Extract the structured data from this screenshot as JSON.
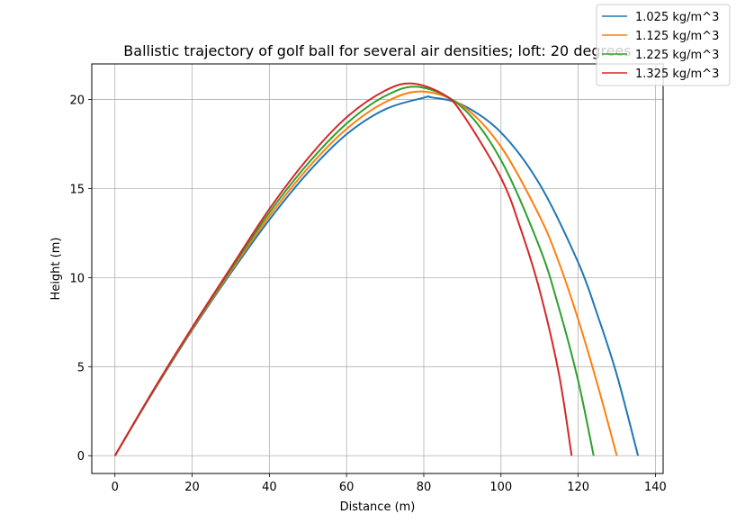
{
  "chart_data": {
    "type": "line",
    "title": "Ballistic trajectory of golf ball for several air densities; loft: 20 degrees",
    "xlabel": "Distance (m)",
    "ylabel": "Height (m)",
    "xlim": [
      -6,
      142
    ],
    "ylim": [
      -1,
      22
    ],
    "xticks": [
      0,
      20,
      40,
      60,
      80,
      100,
      120,
      140
    ],
    "yticks": [
      0,
      5,
      10,
      15,
      20
    ],
    "grid": true,
    "legend_position": "top-right",
    "series": [
      {
        "name": "1.025 kg/m^3",
        "color": "#1f77b4",
        "x": [
          0,
          10,
          20,
          30,
          40,
          50,
          60,
          70,
          80,
          82,
          90,
          100,
          110,
          120,
          125,
          130,
          135.5
        ],
        "y": [
          0,
          3.62,
          7.05,
          10.25,
          13.25,
          15.9,
          18.05,
          19.45,
          20.1,
          20.12,
          19.7,
          18.15,
          15.25,
          10.85,
          7.9,
          4.55,
          0
        ]
      },
      {
        "name": "1.125 kg/m^3",
        "color": "#ff7f0e",
        "x": [
          0,
          10,
          20,
          30,
          40,
          50,
          60,
          70,
          79.5,
          90,
          100,
          110,
          115,
          120,
          125,
          130
        ],
        "y": [
          0,
          3.65,
          7.1,
          10.35,
          13.45,
          16.15,
          18.35,
          19.85,
          20.45,
          19.65,
          17.35,
          13.45,
          10.85,
          7.65,
          4.0,
          0
        ]
      },
      {
        "name": "1.225 kg/m^3",
        "color": "#2ca02c",
        "x": [
          0,
          10,
          20,
          30,
          40,
          50,
          60,
          70,
          79,
          90,
          100,
          110,
          115,
          120,
          124
        ],
        "y": [
          0,
          3.67,
          7.15,
          10.45,
          13.65,
          16.4,
          18.65,
          20.2,
          20.7,
          19.55,
          16.6,
          11.7,
          8.3,
          4.2,
          0
        ]
      },
      {
        "name": "1.325 kg/m^3",
        "color": "#d62728",
        "x": [
          0,
          10,
          20,
          30,
          40,
          50,
          60,
          70,
          77,
          85,
          90,
          100,
          105,
          110,
          115,
          118.3
        ],
        "y": [
          0,
          3.7,
          7.2,
          10.55,
          13.85,
          16.7,
          19.0,
          20.5,
          20.9,
          20.3,
          19.2,
          15.6,
          12.8,
          9.3,
          4.6,
          0
        ]
      }
    ]
  }
}
